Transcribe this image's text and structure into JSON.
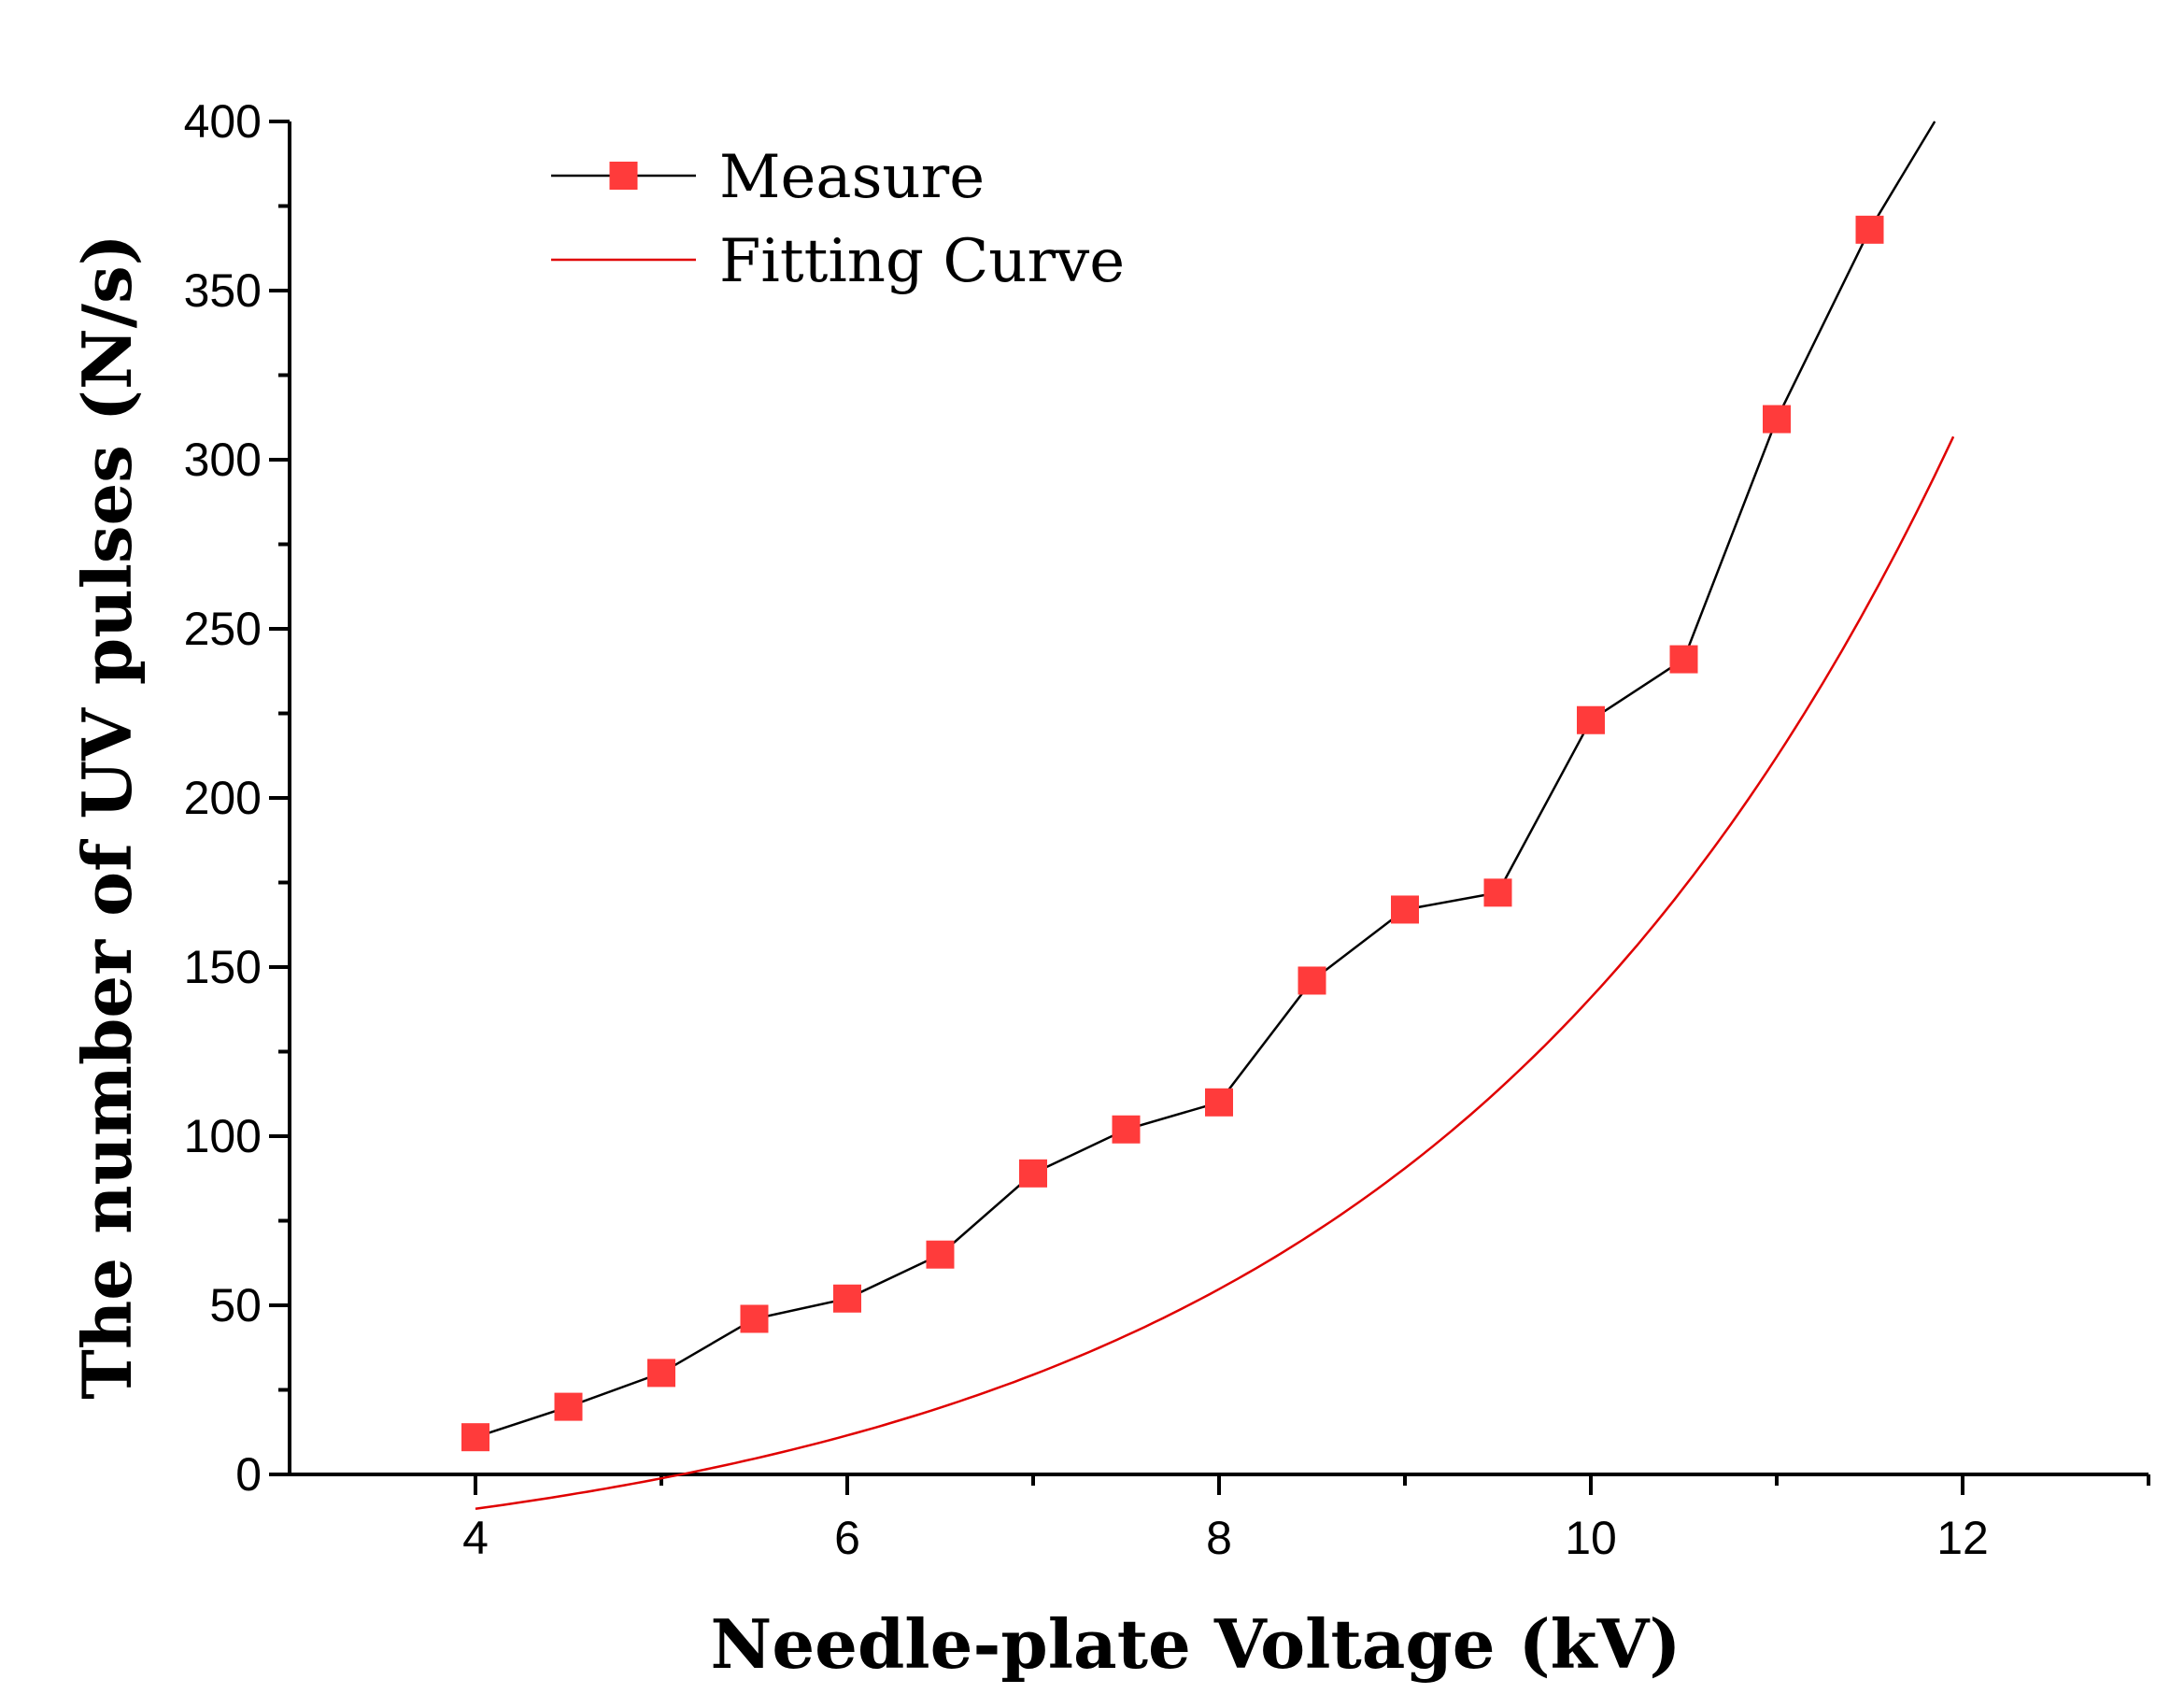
{
  "chart_data": {
    "type": "line",
    "title": "",
    "xlabel": "Needle-plate Voltage (kV)",
    "ylabel": "The number of UV pulses (N/s)",
    "xlim": [
      3,
      13
    ],
    "ylim": [
      0,
      400
    ],
    "xticks": [
      4,
      6,
      8,
      10,
      12
    ],
    "yticks": [
      0,
      50,
      100,
      150,
      200,
      250,
      300,
      350,
      400
    ],
    "xtick_labels": [
      "4",
      "6",
      "8",
      "10",
      "12"
    ],
    "ytick_labels": [
      "0",
      "50",
      "100",
      "150",
      "200",
      "250",
      "300",
      "350",
      "400"
    ],
    "legend_position": "top-left",
    "series": [
      {
        "name": "Measure",
        "kind": "line-markers",
        "line_color": "#000000",
        "marker_color": "#ff3b3b",
        "marker": "square",
        "x": [
          4,
          4.5,
          5,
          5.5,
          6,
          6.5,
          7,
          7.5,
          8,
          8.5,
          9,
          9.5,
          10,
          10.5,
          11,
          11.5,
          11.85
        ],
        "y": [
          11,
          20,
          30,
          46,
          52,
          65,
          89,
          102,
          110,
          146,
          167,
          172,
          223,
          241,
          312,
          368,
          400
        ]
      },
      {
        "name": "Fitting Curve",
        "kind": "line",
        "line_color": "#e00000",
        "fit": {
          "form": "y = A*exp(x/t) + y0",
          "A": 5.5,
          "t": 2.9,
          "y0": -32
        },
        "x_range": [
          4,
          11.95
        ]
      }
    ]
  }
}
